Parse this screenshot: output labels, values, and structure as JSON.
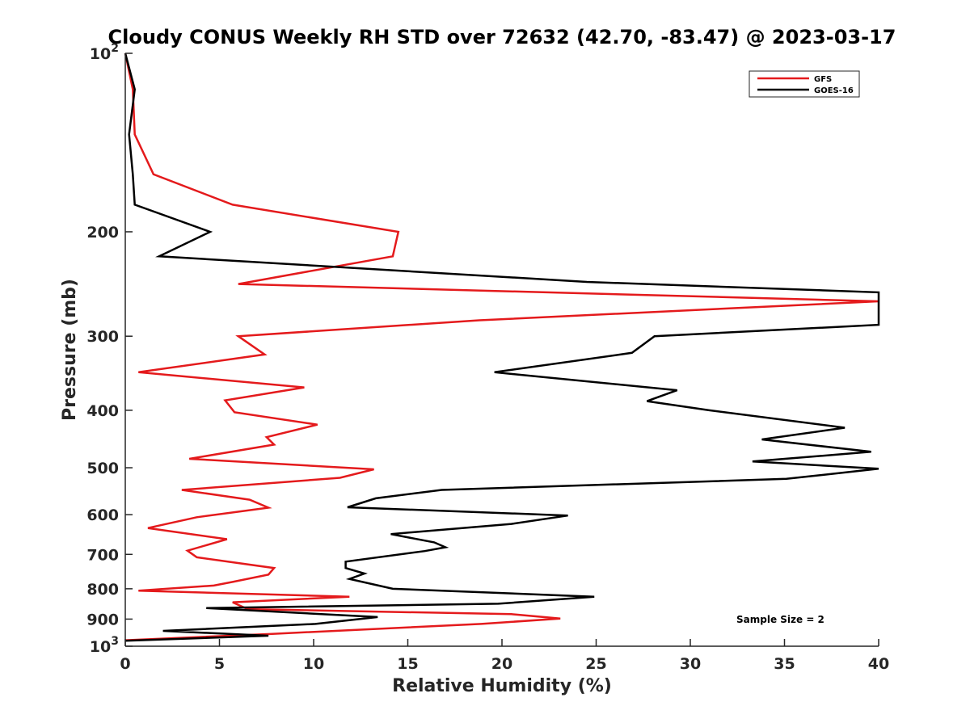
{
  "chart_data": {
    "type": "line",
    "title": "Cloudy CONUS Weekly RH STD over 72632 (42.70, -83.47) @ 2023-03-17",
    "xlabel": "Relative Humidity (%)",
    "ylabel": "Pressure (mb)",
    "xlim": [
      0,
      40
    ],
    "ylim": [
      100,
      1000
    ],
    "y_scale": "log",
    "y_reversed": true,
    "grid": false,
    "legend_position": "top-right",
    "x_ticks": [
      0,
      5,
      10,
      15,
      20,
      25,
      30,
      35,
      40
    ],
    "x_tick_labels": [
      "0",
      "5",
      "10",
      "15",
      "20",
      "25",
      "30",
      "35",
      "40"
    ],
    "y_ticks": [
      100,
      200,
      300,
      400,
      500,
      600,
      700,
      800,
      900,
      1000
    ],
    "y_tick_labels": [
      {
        "base": "10",
        "exp": "2"
      },
      {
        "base": "200",
        "exp": ""
      },
      {
        "base": "300",
        "exp": ""
      },
      {
        "base": "400",
        "exp": ""
      },
      {
        "base": "500",
        "exp": ""
      },
      {
        "base": "600",
        "exp": ""
      },
      {
        "base": "700",
        "exp": ""
      },
      {
        "base": "800",
        "exp": ""
      },
      {
        "base": "900",
        "exp": ""
      },
      {
        "base": "10",
        "exp": "3"
      }
    ],
    "annotation": "Sample Size = 2",
    "series": [
      {
        "name": "GFS",
        "color": "#e41a1c",
        "points": [
          [
            0.0,
            100
          ],
          [
            0.4,
            115
          ],
          [
            0.5,
            137
          ],
          [
            1.5,
            160
          ],
          [
            5.7,
            180
          ],
          [
            14.5,
            200
          ],
          [
            14.2,
            220
          ],
          [
            6.0,
            245
          ],
          [
            40.0,
            262
          ],
          [
            18.8,
            282
          ],
          [
            6.0,
            300
          ],
          [
            7.4,
            322
          ],
          [
            0.7,
            345
          ],
          [
            9.5,
            366
          ],
          [
            5.3,
            385
          ],
          [
            5.8,
            403
          ],
          [
            10.2,
            423
          ],
          [
            7.5,
            444
          ],
          [
            7.9,
            457
          ],
          [
            3.4,
            483
          ],
          [
            13.2,
            503
          ],
          [
            11.4,
            520
          ],
          [
            3.0,
            545
          ],
          [
            6.6,
            566
          ],
          [
            7.6,
            584
          ],
          [
            3.8,
            606
          ],
          [
            1.2,
            632
          ],
          [
            5.4,
            660
          ],
          [
            3.3,
            690
          ],
          [
            3.8,
            708
          ],
          [
            7.9,
            738
          ],
          [
            7.6,
            757
          ],
          [
            5.7,
            779
          ],
          [
            4.7,
            790
          ],
          [
            0.7,
            806
          ],
          [
            11.9,
            825
          ],
          [
            5.7,
            843
          ],
          [
            6.5,
            866
          ],
          [
            20.5,
            883
          ],
          [
            23.1,
            898
          ],
          [
            18.9,
            917
          ],
          [
            7.8,
            953
          ],
          [
            0.0,
            977
          ]
        ]
      },
      {
        "name": "GOES-16",
        "color": "#000000",
        "points": [
          [
            0.0,
            100
          ],
          [
            0.5,
            115
          ],
          [
            0.2,
            137
          ],
          [
            0.4,
            160
          ],
          [
            0.5,
            180
          ],
          [
            4.5,
            200
          ],
          [
            1.8,
            220
          ],
          [
            24.5,
            243
          ],
          [
            40.0,
            253
          ],
          [
            40.0,
            287
          ],
          [
            28.1,
            300
          ],
          [
            26.9,
            320
          ],
          [
            19.6,
            345
          ],
          [
            29.3,
            370
          ],
          [
            27.7,
            386
          ],
          [
            31.0,
            400
          ],
          [
            38.2,
            428
          ],
          [
            33.8,
            448
          ],
          [
            39.6,
            470
          ],
          [
            33.3,
            488
          ],
          [
            40.0,
            502
          ],
          [
            35.1,
            522
          ],
          [
            16.8,
            545
          ],
          [
            13.3,
            563
          ],
          [
            11.8,
            583
          ],
          [
            23.5,
            602
          ],
          [
            20.5,
            622
          ],
          [
            14.1,
            647
          ],
          [
            16.4,
            668
          ],
          [
            17.0,
            681
          ],
          [
            15.9,
            691
          ],
          [
            11.7,
            720
          ],
          [
            11.7,
            738
          ],
          [
            12.7,
            754
          ],
          [
            11.9,
            770
          ],
          [
            14.2,
            800
          ],
          [
            24.9,
            825
          ],
          [
            19.8,
            848
          ],
          [
            4.3,
            862
          ],
          [
            13.4,
            893
          ],
          [
            10.1,
            917
          ],
          [
            2.0,
            942
          ],
          [
            7.6,
            960
          ],
          [
            0.0,
            979
          ]
        ]
      }
    ]
  }
}
